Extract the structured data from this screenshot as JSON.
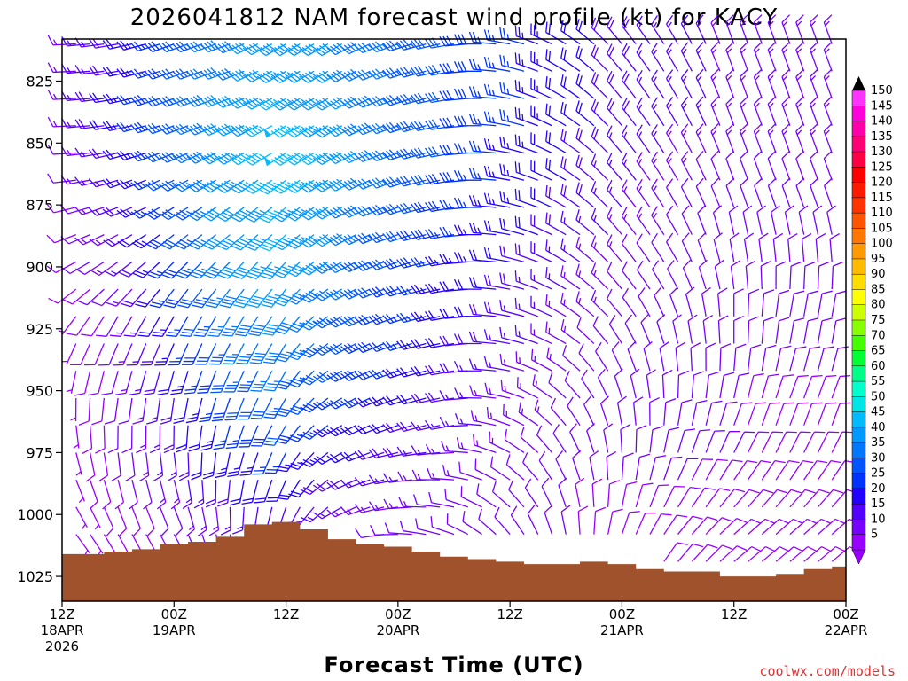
{
  "chart_data": {
    "type": "wind-barb-profile",
    "title": "2026041812 NAM forecast wind profile (kt) for KACY",
    "xlabel": "Forecast Time (UTC)",
    "credit": "coolwx.com/models",
    "y_axis": {
      "quantity": "pressure (mb)",
      "range": [
        1035,
        808
      ],
      "reversed": true,
      "ticks": [
        "825",
        "850",
        "875",
        "900",
        "925",
        "950",
        "975",
        "1000",
        "1025"
      ]
    },
    "x_axis": {
      "range_hours": [
        0,
        84
      ],
      "ticks": [
        {
          "hour": 0,
          "line1": "12Z",
          "line2": "18APR",
          "line3": "2026"
        },
        {
          "hour": 12,
          "line1": "00Z",
          "line2": "19APR",
          "line3": ""
        },
        {
          "hour": 24,
          "line1": "12Z",
          "line2": "",
          "line3": ""
        },
        {
          "hour": 36,
          "line1": "00Z",
          "line2": "20APR",
          "line3": ""
        },
        {
          "hour": 48,
          "line1": "12Z",
          "line2": "",
          "line3": ""
        },
        {
          "hour": 60,
          "line1": "00Z",
          "line2": "21APR",
          "line3": ""
        },
        {
          "hour": 72,
          "line1": "12Z",
          "line2": "",
          "line3": ""
        },
        {
          "hour": 84,
          "line1": "00Z",
          "line2": "22APR",
          "line3": ""
        }
      ]
    },
    "colorbar": {
      "labels": [
        "150",
        "145",
        "140",
        "135",
        "130",
        "125",
        "120",
        "115",
        "110",
        "105",
        "100",
        "95",
        "90",
        "85",
        "80",
        "75",
        "70",
        "65",
        "60",
        "55",
        "50",
        "45",
        "40",
        "35",
        "30",
        "25",
        "20",
        "15",
        "10",
        "5"
      ],
      "colors": [
        "#ff33ff",
        "#ff00dd",
        "#ff00aa",
        "#ff0077",
        "#ff0044",
        "#ff0000",
        "#ff1a00",
        "#ff3300",
        "#ff5500",
        "#ff7700",
        "#ff9900",
        "#ffbb00",
        "#ffdd00",
        "#ffff00",
        "#ccff00",
        "#88ff00",
        "#44ff00",
        "#00ff33",
        "#00ff88",
        "#00ffcc",
        "#00e5e5",
        "#00bbff",
        "#0099ff",
        "#0077ff",
        "#0055ff",
        "#0033ff",
        "#2200ff",
        "#5500ff",
        "#7700ff",
        "#9900ff"
      ]
    },
    "surface_pressure": {
      "hours": [
        0,
        3,
        6,
        9,
        12,
        15,
        18,
        21,
        24,
        27,
        30,
        33,
        36,
        39,
        42,
        45,
        48,
        51,
        54,
        57,
        60,
        63,
        66,
        69,
        72,
        75,
        78,
        81,
        84
      ],
      "pressure_mb": [
        1016,
        1016,
        1015,
        1014,
        1012,
        1011,
        1009,
        1004,
        1003,
        1006,
        1010,
        1012,
        1013,
        1015,
        1017,
        1018,
        1019,
        1020,
        1020,
        1019,
        1020,
        1022,
        1023,
        1023,
        1025,
        1025,
        1024,
        1022,
        1021
      ]
    },
    "wind_profile": {
      "levels_mb": [
        815,
        830,
        845,
        860,
        875,
        890,
        905,
        920,
        935,
        950,
        965,
        980,
        995,
        1010
      ],
      "hours": [
        0,
        6,
        12,
        18,
        24,
        30,
        36,
        42,
        48,
        54,
        60,
        66,
        72,
        78,
        84
      ],
      "speed_kt": [
        [
          12,
          18,
          28,
          38,
          42,
          40,
          36,
          30,
          26,
          22,
          18,
          16,
          14,
          14,
          14
        ],
        [
          12,
          20,
          30,
          40,
          45,
          42,
          36,
          30,
          26,
          22,
          18,
          16,
          14,
          14,
          14
        ],
        [
          10,
          20,
          32,
          42,
          48,
          44,
          36,
          30,
          26,
          22,
          18,
          16,
          14,
          14,
          14
        ],
        [
          10,
          18,
          30,
          42,
          48,
          44,
          36,
          30,
          24,
          20,
          16,
          14,
          12,
          12,
          12
        ],
        [
          8,
          16,
          30,
          40,
          46,
          42,
          34,
          28,
          24,
          20,
          16,
          12,
          10,
          10,
          10
        ],
        [
          8,
          14,
          28,
          40,
          46,
          40,
          32,
          26,
          22,
          18,
          14,
          12,
          10,
          10,
          10
        ],
        [
          8,
          12,
          26,
          38,
          44,
          38,
          30,
          24,
          20,
          16,
          12,
          10,
          10,
          10,
          10
        ],
        [
          6,
          10,
          24,
          36,
          40,
          34,
          28,
          22,
          18,
          14,
          12,
          10,
          10,
          10,
          10
        ],
        [
          6,
          10,
          22,
          34,
          38,
          32,
          26,
          20,
          16,
          14,
          10,
          10,
          10,
          10,
          10
        ],
        [
          6,
          10,
          20,
          30,
          34,
          28,
          24,
          18,
          14,
          12,
          10,
          10,
          10,
          10,
          10
        ],
        [
          6,
          10,
          18,
          26,
          30,
          24,
          20,
          16,
          14,
          12,
          10,
          10,
          10,
          8,
          8
        ],
        [
          6,
          10,
          16,
          22,
          24,
          20,
          18,
          14,
          12,
          10,
          10,
          10,
          10,
          8,
          8
        ],
        [
          6,
          8,
          12,
          16,
          18,
          16,
          14,
          12,
          10,
          10,
          10,
          10,
          8,
          8,
          8
        ],
        [
          6,
          8,
          10,
          12,
          12,
          12,
          10,
          10,
          10,
          10,
          8,
          8,
          8,
          8,
          8
        ]
      ],
      "direction_deg": [
        [
          270,
          260,
          250,
          250,
          240,
          240,
          250,
          260,
          280,
          300,
          320,
          330,
          340,
          340,
          340
        ],
        [
          270,
          260,
          250,
          250,
          240,
          240,
          250,
          260,
          280,
          300,
          320,
          330,
          340,
          340,
          340
        ],
        [
          270,
          260,
          250,
          245,
          240,
          240,
          250,
          260,
          280,
          300,
          320,
          330,
          340,
          340,
          340
        ],
        [
          270,
          255,
          245,
          240,
          235,
          240,
          250,
          260,
          280,
          300,
          320,
          330,
          340,
          340,
          340
        ],
        [
          260,
          250,
          240,
          235,
          230,
          240,
          250,
          260,
          280,
          300,
          320,
          330,
          340,
          340,
          340
        ],
        [
          250,
          240,
          230,
          230,
          225,
          240,
          250,
          260,
          280,
          300,
          320,
          330,
          350,
          350,
          350
        ],
        [
          240,
          230,
          220,
          220,
          220,
          240,
          250,
          260,
          280,
          300,
          320,
          330,
          350,
          360,
          360
        ],
        [
          220,
          210,
          210,
          210,
          215,
          240,
          250,
          260,
          280,
          300,
          320,
          340,
          360,
          10,
          10
        ],
        [
          200,
          200,
          200,
          205,
          210,
          240,
          250,
          260,
          280,
          300,
          330,
          350,
          360,
          10,
          10
        ],
        [
          180,
          190,
          190,
          200,
          210,
          240,
          250,
          260,
          280,
          310,
          340,
          360,
          10,
          20,
          20
        ],
        [
          170,
          180,
          180,
          195,
          210,
          240,
          250,
          260,
          290,
          320,
          350,
          10,
          20,
          20,
          20
        ],
        [
          160,
          170,
          170,
          190,
          205,
          240,
          260,
          270,
          300,
          330,
          360,
          20,
          30,
          30,
          30
        ],
        [
          150,
          160,
          160,
          180,
          200,
          240,
          260,
          280,
          310,
          340,
          10,
          30,
          40,
          40,
          40
        ],
        [
          140,
          150,
          150,
          170,
          190,
          240,
          270,
          290,
          320,
          350,
          20,
          40,
          50,
          50,
          50
        ]
      ]
    }
  }
}
